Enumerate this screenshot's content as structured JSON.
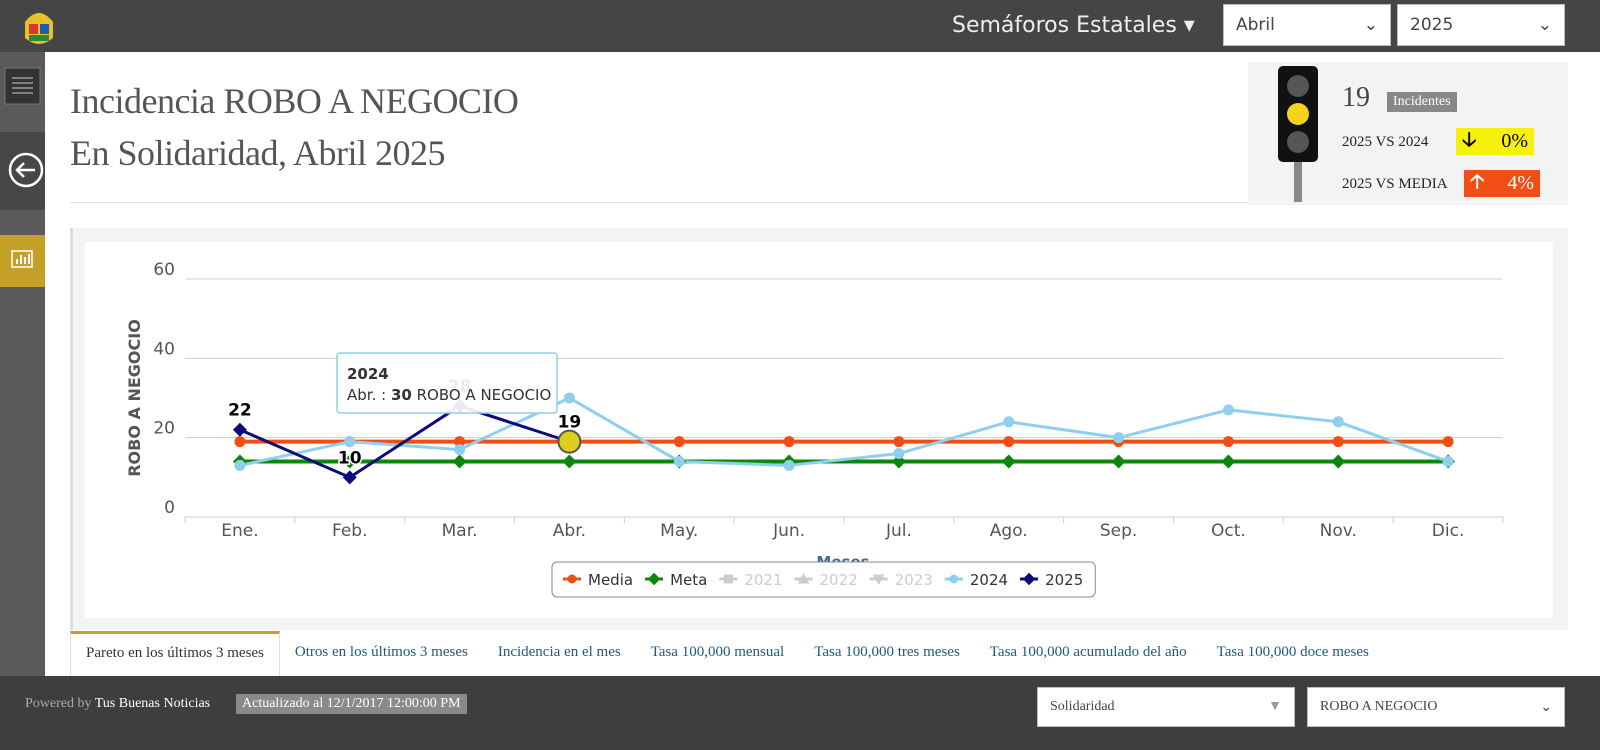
{
  "header": {
    "menu": "Semáforos Estatales",
    "month": "Abril",
    "year": "2025"
  },
  "title": {
    "line1": "Incidencia ROBO A NEGOCIO",
    "line2": "En Solidaridad, Abril 2025"
  },
  "summary": {
    "count": "19",
    "count_label": "Incidentes",
    "vs_prev_label": "2025 VS 2024",
    "vs_prev": "0%",
    "vs_mean_label": "2025 VS MEDIA",
    "vs_mean": "4%"
  },
  "chart_data": {
    "type": "line",
    "y_label": "ROBO A NEGOCIO",
    "x_label": "Meses",
    "categories": [
      "Ene.",
      "Feb.",
      "Mar.",
      "Abr.",
      "May.",
      "Jun.",
      "Jul.",
      "Ago.",
      "Sep.",
      "Oct.",
      "Nov.",
      "Dic."
    ],
    "ylim": [
      0,
      60
    ],
    "yticks": [
      0,
      20,
      40,
      60
    ],
    "grid": true,
    "series": [
      {
        "name": "Media",
        "color": "#f04e14",
        "marker": "circle",
        "values": [
          19,
          19,
          19,
          19,
          19,
          19,
          19,
          19,
          19,
          19,
          19,
          19
        ]
      },
      {
        "name": "Meta",
        "color": "#0b870b",
        "marker": "diamond",
        "values": [
          14,
          14,
          14,
          14,
          14,
          14,
          14,
          14,
          14,
          14,
          14,
          14
        ]
      },
      {
        "name": "2021",
        "color": "#cccccc",
        "marker": "square",
        "visible": false,
        "values": [
          null,
          null,
          null,
          null,
          null,
          null,
          null,
          null,
          null,
          null,
          null,
          null
        ]
      },
      {
        "name": "2022",
        "color": "#cccccc",
        "marker": "triangle",
        "visible": false,
        "values": [
          null,
          null,
          null,
          null,
          null,
          null,
          null,
          null,
          null,
          null,
          null,
          null
        ]
      },
      {
        "name": "2023",
        "color": "#cccccc",
        "marker": "triangle-down",
        "visible": false,
        "values": [
          null,
          null,
          null,
          null,
          null,
          null,
          null,
          null,
          null,
          null,
          null,
          null
        ]
      },
      {
        "name": "2024",
        "color": "#8ecfee",
        "marker": "circle",
        "values": [
          13,
          19,
          17,
          30,
          14,
          13,
          16,
          24,
          20,
          27,
          24,
          14
        ]
      },
      {
        "name": "2025",
        "color": "#0b0b7a",
        "marker": "diamond",
        "data_labels": true,
        "values": [
          22,
          10,
          28,
          19,
          null,
          null,
          null,
          null,
          null,
          null,
          null,
          null
        ]
      }
    ],
    "tooltip": {
      "series": 5,
      "index": 3
    },
    "selected": {
      "series": 6,
      "index": 3
    }
  },
  "tabs": [
    "Pareto en los últimos 3 meses",
    "Otros en los últimos 3 meses",
    "Incidencia en el mes",
    "Tasa 100,000 mensual",
    "Tasa 100,000 tres meses",
    "Tasa 100,000 acumulado del año",
    "Tasa 100,000 doce meses"
  ],
  "footer": {
    "powered": "Powered by",
    "brand": "Tus Buenas Noticias",
    "updated": "Actualizado al 12/1/2017 12:00:00 PM",
    "place": "Solidaridad",
    "crime": "ROBO A NEGOCIO"
  }
}
